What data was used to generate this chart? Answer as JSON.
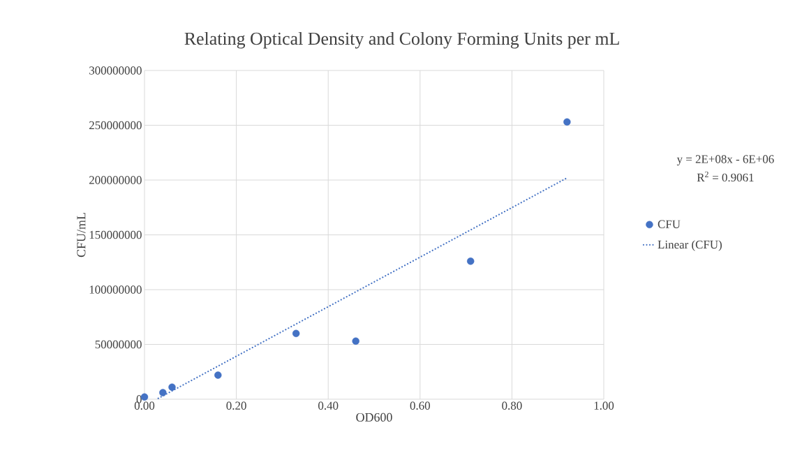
{
  "chart_data": {
    "type": "scatter",
    "title": "Relating  Optical Density and Colony Forming Units  per mL",
    "xlabel": "OD600",
    "ylabel": "CFU/mL",
    "xlim": [
      0,
      1
    ],
    "ylim": [
      0,
      300000000
    ],
    "xticks": [
      {
        "value": 0,
        "label": "0.00"
      },
      {
        "value": 0.2,
        "label": "0.20"
      },
      {
        "value": 0.4,
        "label": "0.40"
      },
      {
        "value": 0.6,
        "label": "0.60"
      },
      {
        "value": 0.8,
        "label": "0.80"
      },
      {
        "value": 1,
        "label": "1.00"
      }
    ],
    "yticks": [
      0,
      50000000,
      100000000,
      150000000,
      200000000,
      250000000,
      300000000
    ],
    "grid": true,
    "legend": "right",
    "marker": "circle",
    "annotations": [
      "y = 2E+08x - 6E+06",
      "R$^{2}$ = 0.9061"
    ],
    "series": [
      {
        "name": "CFU",
        "color": "#4472c4",
        "x": [
          0.0,
          0.04,
          0.06,
          0.16,
          0.33,
          0.46,
          0.71,
          0.92
        ],
        "values": [
          2000000,
          6000000,
          11000000,
          22000000,
          60000000,
          53000000,
          126000000,
          253000000
        ]
      },
      {
        "name": "Linear (CFU)",
        "type": "line",
        "line_style": "dotted",
        "marker": "none",
        "color": "#4472c4",
        "x": [
          0.03,
          0.92
        ],
        "values": [
          800000,
          202000000
        ]
      }
    ]
  }
}
